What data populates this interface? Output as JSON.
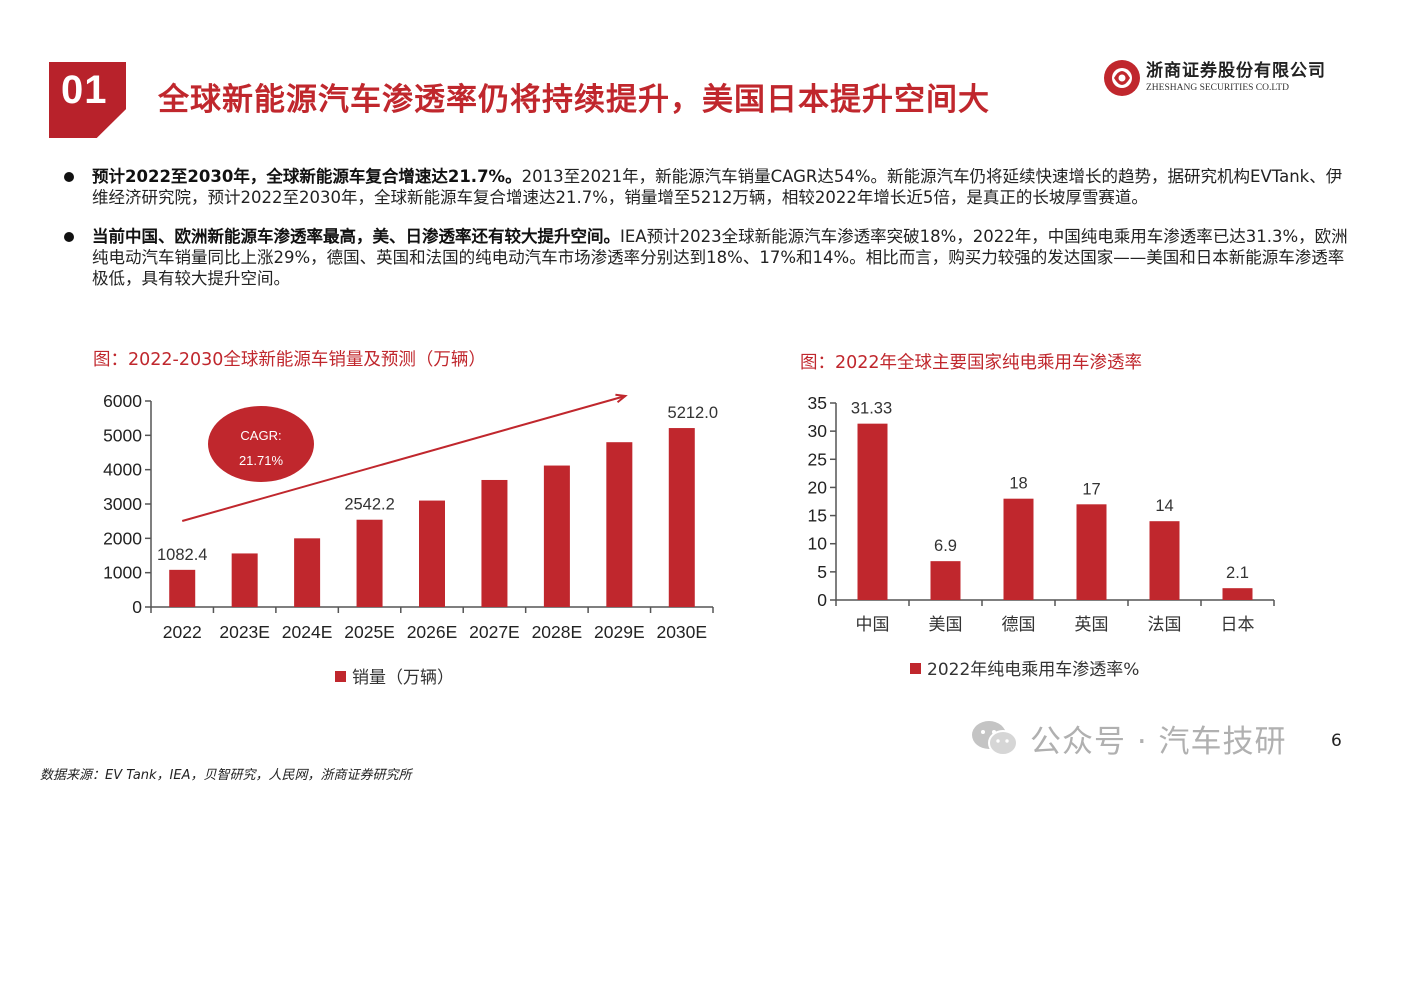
{
  "header": {
    "section_number": "01",
    "title": "全球新能源汽车渗透率仍将持续提升，美国日本提升空间大",
    "logo_cn": "浙商证券股份有限公司",
    "logo_en": "ZHESHANG SECURITIES CO.LTD"
  },
  "bullets": [
    {
      "bold": "预计2022至2030年，全球新能源车复合增速达21.7%。",
      "text": "2013至2021年，新能源汽车销量CAGR达54%。新能源汽车仍将延续快速增长的趋势，据研究机构EVTank、伊维经济研究院，预计2022至2030年，全球新能源车复合增速达21.7%，销量增至5212万辆，相较2022年增长近5倍，是真正的长坡厚雪赛道。"
    },
    {
      "bold": "当前中国、欧洲新能源车渗透率最高，美、日渗透率还有较大提升空间。",
      "text": "IEA预计2023全球新能源汽车渗透率突破18%，2022年，中国纯电乘用车渗透率已达31.3%，欧洲纯电动汽车销量同比上涨29%，德国、英国和法国的纯电动汽车市场渗透率分别达到18%、17%和14%。相比而言，购买力较强的发达国家——美国和日本新能源车渗透率极低，具有较大提升空间。"
    }
  ],
  "chart_data": [
    {
      "type": "bar",
      "title": "图：2022-2030全球新能源车销量及预测（万辆）",
      "categories": [
        "2022",
        "2023E",
        "2024E",
        "2025E",
        "2026E",
        "2027E",
        "2028E",
        "2029E",
        "2030E"
      ],
      "series": [
        {
          "name": "销量（万辆）",
          "values": [
            1082.4,
            1560,
            2000,
            2542.2,
            3100,
            3700,
            4120,
            4800,
            5212.0
          ]
        }
      ],
      "data_labels": {
        "0": "1082.4",
        "3": "2542.2",
        "8": "5212.0"
      },
      "ylim": [
        0,
        6000
      ],
      "yticks": [
        "0",
        "1000",
        "2000",
        "3000",
        "4000",
        "5000",
        "6000"
      ],
      "annotation": {
        "line1": "CAGR:",
        "line2": "21.71%"
      },
      "legend": "bottom-center",
      "color": "#c0272d"
    },
    {
      "type": "bar",
      "title": "图：2022年全球主要国家纯电乘用车渗透率",
      "categories": [
        "中国",
        "美国",
        "德国",
        "英国",
        "法国",
        "日本"
      ],
      "series": [
        {
          "name": "2022年纯电乘用车渗透率%",
          "values": [
            31.33,
            6.9,
            18,
            17,
            14,
            2.1
          ]
        }
      ],
      "data_labels": [
        "31.33",
        "6.9",
        "18",
        "17",
        "14",
        "2.1"
      ],
      "ylim": [
        0,
        35
      ],
      "yticks": [
        "0",
        "5",
        "10",
        "15",
        "20",
        "25",
        "30",
        "35"
      ],
      "legend": "bottom-center",
      "color": "#c0272d"
    }
  ],
  "watermark": "公众号 · 汽车技研",
  "page_number": "6",
  "source": "数据来源：EV Tank，IEA，贝智研究，人民网，浙商证券研究所"
}
